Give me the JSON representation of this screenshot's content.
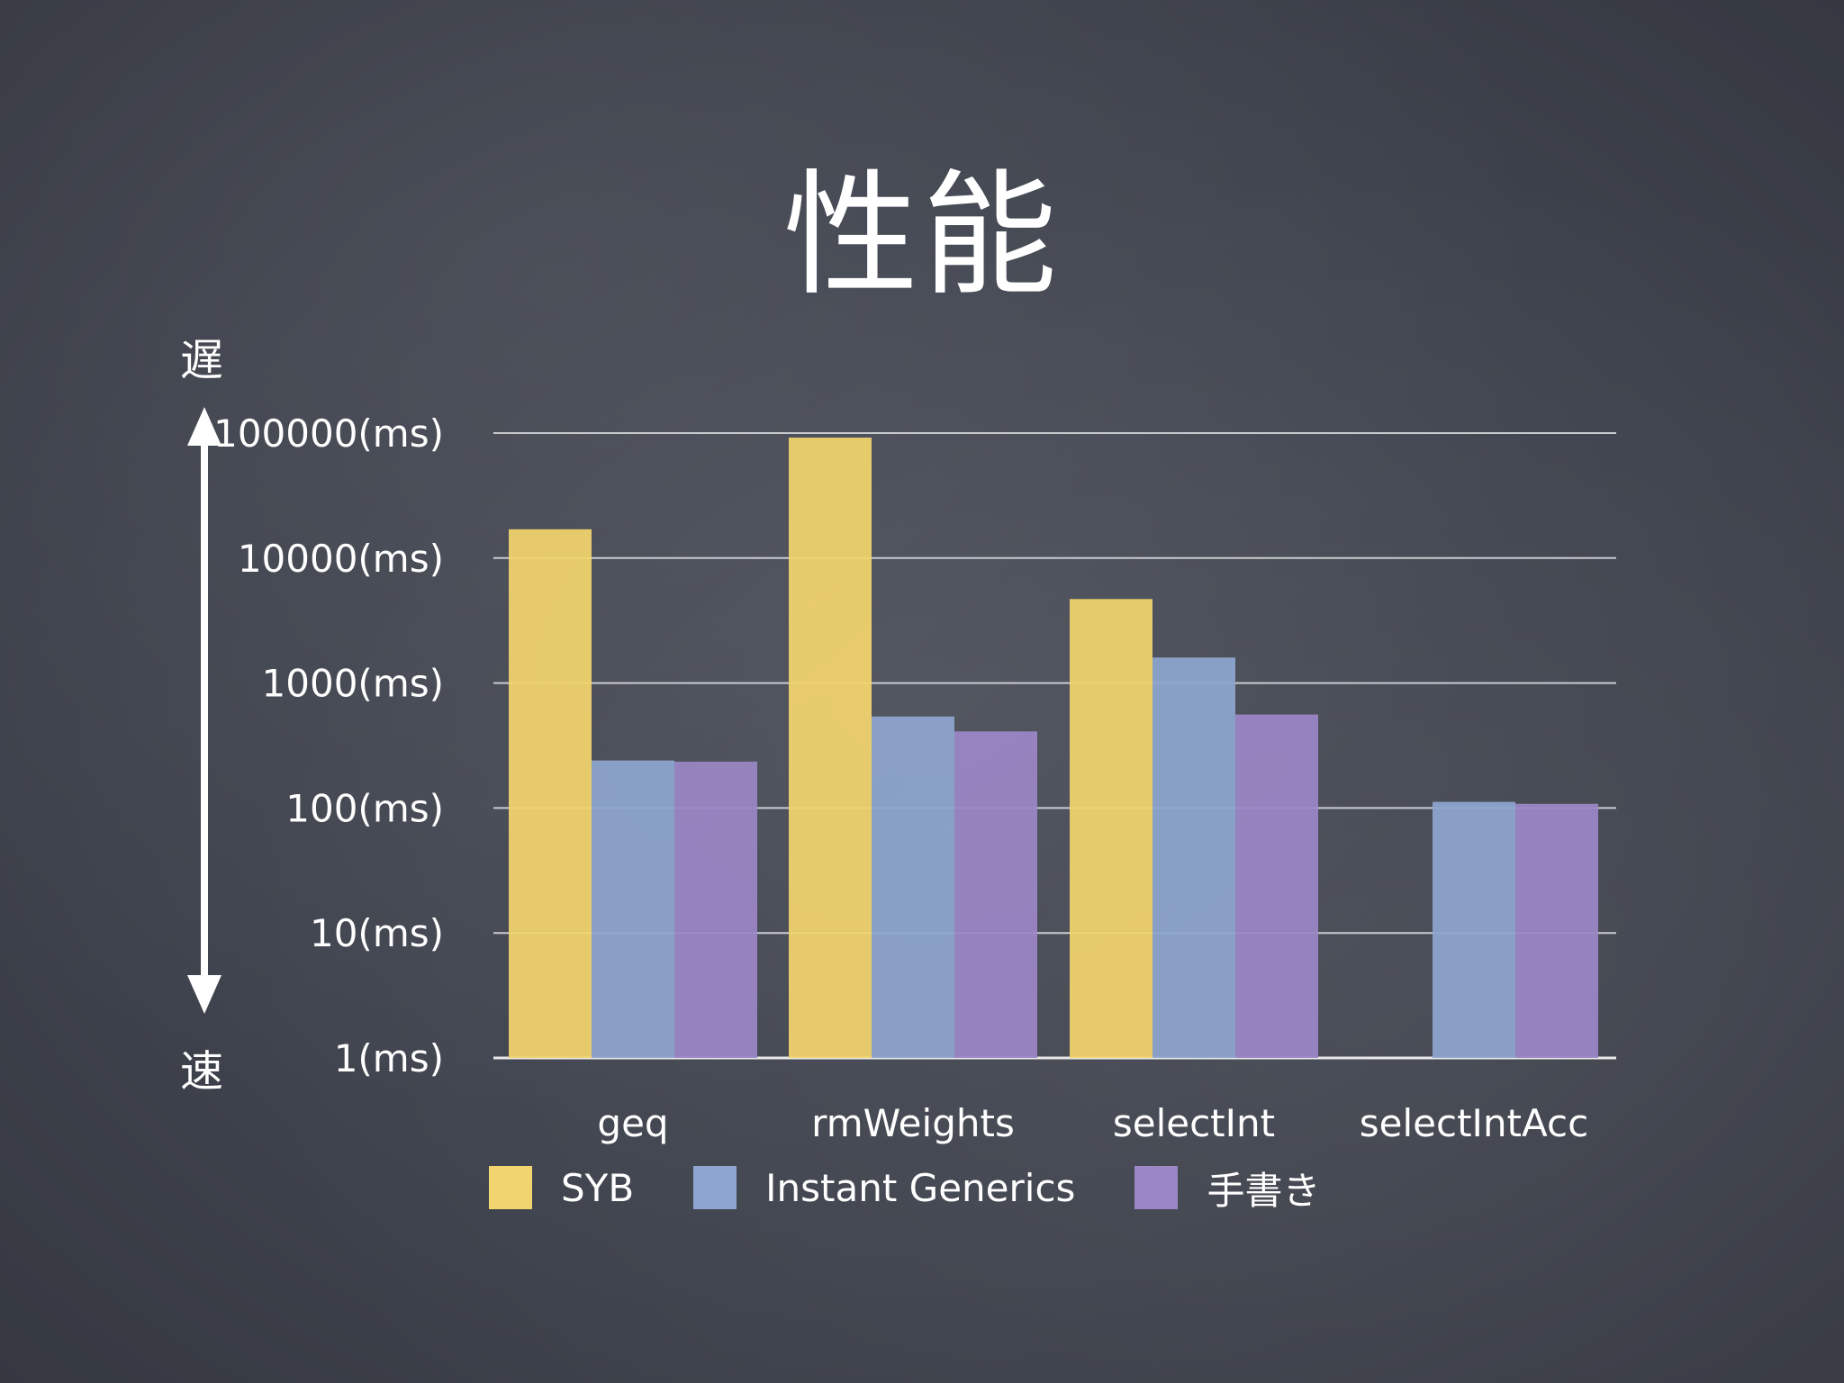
{
  "slide": {
    "title": "性能",
    "slow_label": "遅",
    "fast_label": "速"
  },
  "chart_data": {
    "type": "bar",
    "scale": "log10",
    "ylim": [
      1,
      100000
    ],
    "yticks": [
      "1(ms)",
      "10(ms)",
      "100(ms)",
      "1000(ms)",
      "10000(ms)",
      "100000(ms)"
    ],
    "categories": [
      "geq",
      "rmWeights",
      "selectInt",
      "selectIntAcc"
    ],
    "series": [
      {
        "name": "SYB",
        "color": "#f2d46e",
        "values": [
          17000,
          92000,
          4700,
          null
        ]
      },
      {
        "name": "Instant Generics",
        "color": "#8ea6cf",
        "values": [
          240,
          540,
          1600,
          112
        ]
      },
      {
        "name": "手書き",
        "color": "#9b86c6",
        "values": [
          235,
          410,
          560,
          108
        ]
      }
    ],
    "grid": true,
    "legend_position": "bottom-center"
  }
}
